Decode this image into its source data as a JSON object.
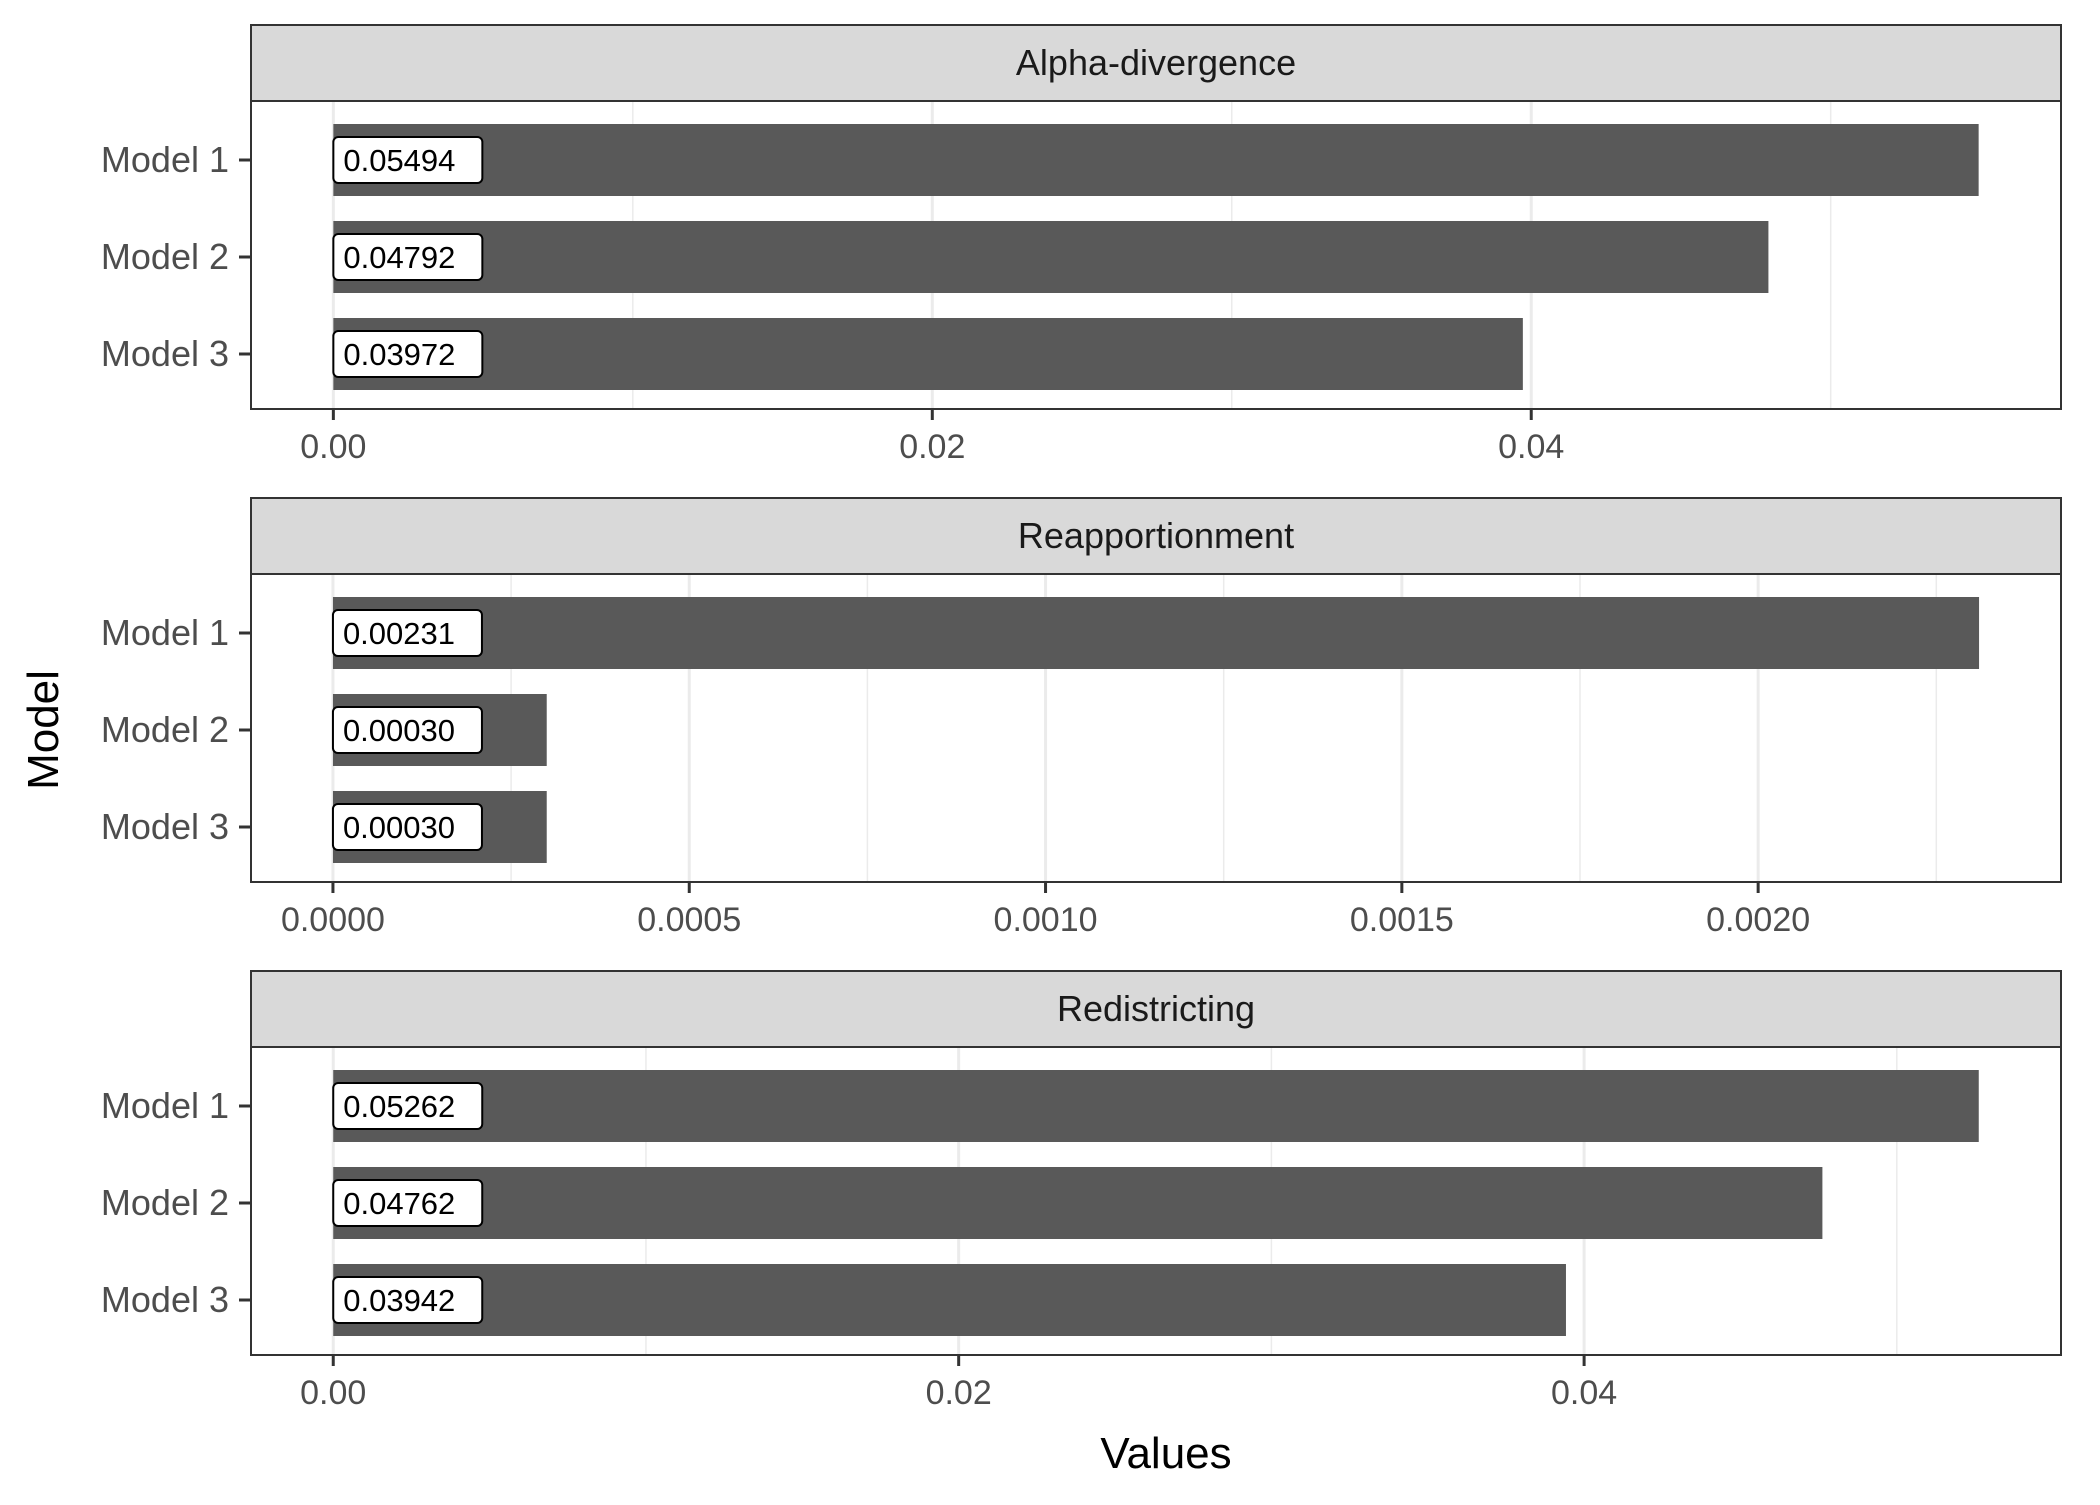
{
  "chart_data": {
    "type": "bar",
    "orientation": "horizontal",
    "xlabel": "Values",
    "ylabel": "Model",
    "grid": true,
    "colors": {
      "bar": "#595959",
      "strip_fill": "#d9d9d9",
      "panel_border": "#333333",
      "grid": "#ebebeb",
      "label_box": "#ffffff"
    },
    "panels": [
      {
        "title": "Alpha-divergence",
        "categories": [
          "Model 1",
          "Model 2",
          "Model 3"
        ],
        "values": [
          0.05494,
          0.04792,
          0.03972
        ],
        "labels": [
          "0.05494",
          "0.04792",
          "0.03972"
        ],
        "xlim": [
          -0.00275,
          0.05769
        ],
        "ticks": [
          0,
          0.02,
          0.04
        ],
        "tick_labels": [
          "0.00",
          "0.02",
          "0.04"
        ]
      },
      {
        "title": "Reapportionment",
        "categories": [
          "Model 1",
          "Model 2",
          "Model 3"
        ],
        "values": [
          0.00231,
          0.0003,
          0.0003
        ],
        "labels": [
          "0.00231",
          "0.00030",
          "0.00030"
        ],
        "xlim": [
          -0.000115,
          0.002425
        ],
        "ticks": [
          0,
          0.0005,
          0.001,
          0.0015,
          0.002
        ],
        "tick_labels": [
          "0.0000",
          "0.0005",
          "0.0010",
          "0.0015",
          "0.0020"
        ]
      },
      {
        "title": "Redistricting",
        "categories": [
          "Model 1",
          "Model 2",
          "Model 3"
        ],
        "values": [
          0.05262,
          0.04762,
          0.03942
        ],
        "labels": [
          "0.05262",
          "0.04762",
          "0.03942"
        ],
        "xlim": [
          -0.00263,
          0.05525
        ],
        "ticks": [
          0,
          0.02,
          0.04
        ],
        "tick_labels": [
          "0.00",
          "0.02",
          "0.04"
        ]
      }
    ]
  }
}
